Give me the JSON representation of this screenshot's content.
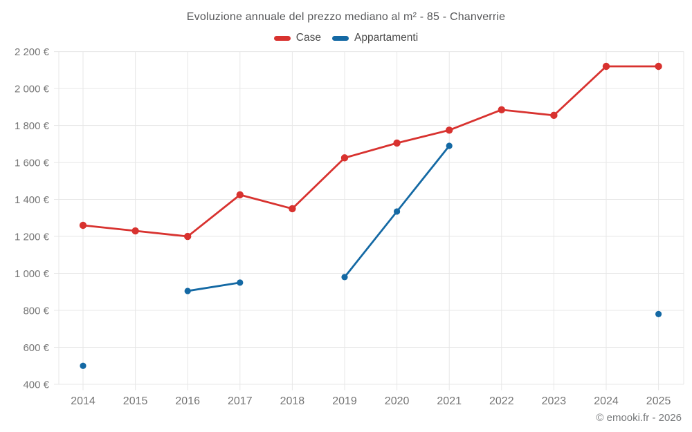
{
  "chart": {
    "title": "Evoluzione annuale del prezzo mediano al m² - 85 - Chanverrie",
    "legend": [
      {
        "label": "Case",
        "color": "#d8322f"
      },
      {
        "label": "Appartamenti",
        "color": "#1469a4"
      }
    ],
    "footer": "© emooki.fr - 2026"
  },
  "chart_data": {
    "type": "line",
    "title": "Evoluzione annuale del prezzo mediano al m² - 85 - Chanverrie",
    "categories": [
      "2014",
      "2015",
      "2016",
      "2017",
      "2018",
      "2019",
      "2020",
      "2021",
      "2022",
      "2023",
      "2024",
      "2025"
    ],
    "series": [
      {
        "name": "Case",
        "color": "#d8322f",
        "marker_radius": 5.2,
        "values": [
          1260,
          1230,
          1200,
          1425,
          1350,
          1625,
          1705,
          1775,
          1885,
          1855,
          2120,
          2120
        ]
      },
      {
        "name": "Appartamenti",
        "color": "#1469a4",
        "marker_radius": 4.6,
        "values": [
          500,
          null,
          905,
          950,
          null,
          980,
          1335,
          1690,
          null,
          null,
          null,
          780
        ]
      }
    ],
    "ylim": [
      400,
      2200
    ],
    "ytick_step": 200,
    "ytick_labels": [
      "400 €",
      "600 €",
      "800 €",
      "1 000 €",
      "1 200 €",
      "1 400 €",
      "1 600 €",
      "1 800 €",
      "2 000 €",
      "2 200 €"
    ],
    "xlabel": "",
    "ylabel": "",
    "grid": true,
    "legend_position": "top",
    "gridline_color": "#e7e7e7",
    "tick_label_color": "#757575"
  }
}
